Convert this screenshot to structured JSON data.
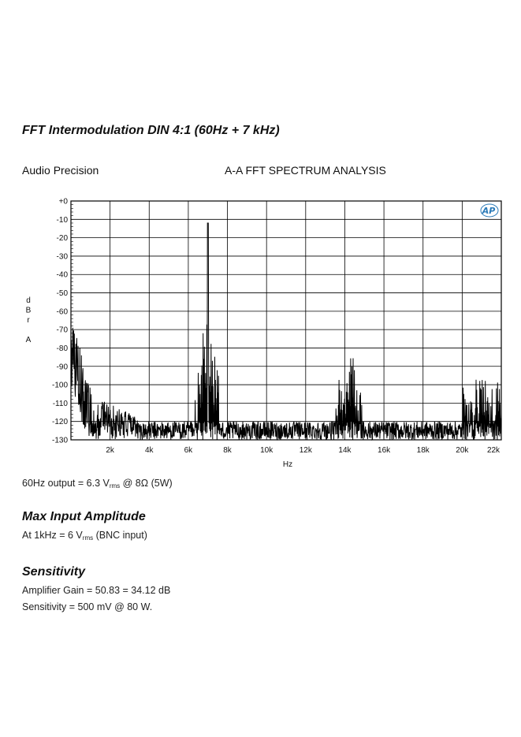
{
  "page": {
    "fft_heading": "FFT Intermodulation DIN 4:1 (60Hz + 7 kHz)",
    "output_note": {
      "prefix": "60Hz output = 6.3 V",
      "sub": "rms",
      "suffix": " @ 8Ω (5W)"
    },
    "max_input": {
      "heading": "Max Input Amplitude",
      "line": {
        "prefix": "At  1kHz = 6 V",
        "sub": "rms",
        "suffix": " (BNC input)"
      }
    },
    "sensitivity": {
      "heading": "Sensitivity",
      "gain_line": "Amplifier Gain = 50.83 = 34.12 dB",
      "sens_line": "Sensitivity = 500 mV @ 80 W."
    }
  },
  "chart_data": {
    "type": "line",
    "brand": "Audio Precision",
    "title": "A-A FFT SPECTRUM ANALYSIS",
    "logo_text": "AP",
    "ylabel": "dBrA",
    "ylabel_chars": [
      "d",
      "B",
      "r",
      "",
      "A"
    ],
    "xlabel": "Hz",
    "xlim": [
      0,
      22000
    ],
    "ylim": [
      -130,
      0
    ],
    "x_ticks": [
      2000,
      4000,
      6000,
      8000,
      10000,
      12000,
      14000,
      16000,
      18000,
      20000,
      22000
    ],
    "x_tick_labels": [
      "2k",
      "4k",
      "6k",
      "8k",
      "10k",
      "12k",
      "14k",
      "16k",
      "18k",
      "20k",
      "22k"
    ],
    "y_ticks": [
      0,
      -10,
      -20,
      -30,
      -40,
      -50,
      -60,
      -70,
      -80,
      -90,
      -100,
      -110,
      -120,
      -130
    ],
    "y_tick_labels": [
      "+0",
      "-10",
      "-20",
      "-30",
      "-40",
      "-50",
      "-60",
      "-70",
      "-80",
      "-90",
      "-100",
      "-110",
      "-120",
      "-130"
    ],
    "grid": true,
    "series": [
      {
        "color": "#000000",
        "noise_floor": -125,
        "components": [
          {
            "label": "LF / 60Hz region",
            "f": 60,
            "level": -60
          },
          {
            "label": "7 kHz tone",
            "f": 7000,
            "level": -12
          },
          {
            "label": "7 kHz IMD sidebands",
            "f_range": [
              6400,
              7600
            ],
            "level": -63
          },
          {
            "label": "2nd harmonic IMD cluster",
            "f_range": [
              13500,
              15000
            ],
            "level": -80
          },
          {
            "label": "3rd harmonic IMD cluster",
            "f_range": [
              20000,
              22000
            ],
            "level": -93
          }
        ]
      }
    ]
  }
}
